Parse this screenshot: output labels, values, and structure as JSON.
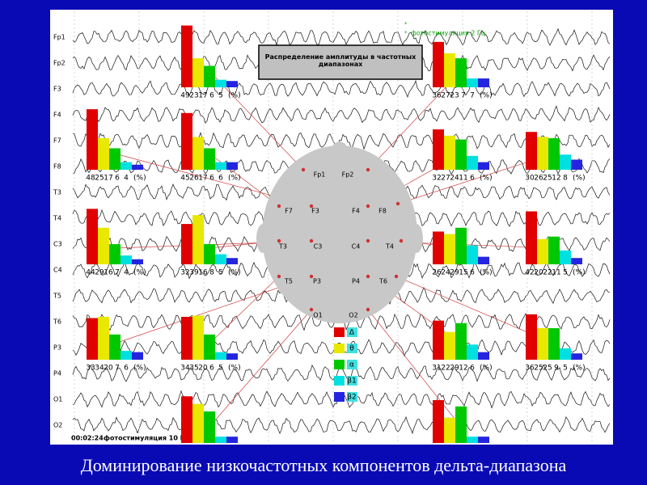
{
  "slide_title": "Доминирование низкочастотных компонентов дельта-диапазона",
  "panel_title": "Распределение амплитуды в частотных диапазонах",
  "stimulus_note": "фотостимуляция 2 Гц",
  "timestamp": "00:02:24",
  "stimulus_note_bottom": "фотостимуляция 10 Гц",
  "channels": [
    "Fp1",
    "Fp2",
    "F3",
    "F4",
    "F7",
    "F8",
    "T3",
    "T4",
    "C3",
    "C4",
    "T5",
    "T6",
    "P3",
    "P4",
    "O1",
    "O2"
  ],
  "electrodes": [
    "Fp1",
    "Fp2",
    "F7",
    "F3",
    "F4",
    "F8",
    "T3",
    "C3",
    "C4",
    "T4",
    "T5",
    "P3",
    "P4",
    "T6",
    "O1",
    "O2"
  ],
  "legend": [
    {
      "label": "Δ",
      "color": "#e00000"
    },
    {
      "label": "θ",
      "color": "#e8e800"
    },
    {
      "label": "α",
      "color": "#00c800"
    },
    {
      "label": "β1",
      "color": "#00e0e0"
    },
    {
      "label": "β2",
      "color": "#2424e0"
    }
  ],
  "unit": "(%)",
  "chart_data": [
    {
      "type": "bar",
      "values": [
        49,
        23,
        17,
        6,
        5
      ],
      "ylim": [
        0,
        50
      ],
      "show_values": true
    },
    {
      "type": "bar",
      "values": [
        36,
        27,
        23,
        7,
        7
      ],
      "ylim": [
        0,
        50
      ],
      "show_values": true
    },
    {
      "type": "bar",
      "values": [
        48,
        25,
        17,
        6,
        4
      ],
      "ylim": [
        0,
        50
      ],
      "show_values": true
    },
    {
      "type": "bar",
      "values": [
        45,
        26,
        17,
        6,
        6
      ],
      "ylim": [
        0,
        50
      ],
      "show_values": true
    },
    {
      "type": "bar",
      "values": [
        32,
        27,
        24,
        11,
        6
      ],
      "ylim": [
        0,
        50
      ],
      "show_values": true
    },
    {
      "type": "bar",
      "values": [
        30,
        26,
        25,
        12,
        8
      ],
      "ylim": [
        0,
        50
      ],
      "show_values": true
    },
    {
      "type": "bar",
      "values": [
        44,
        29,
        16,
        7,
        4
      ],
      "ylim": [
        0,
        50
      ],
      "show_values": true
    },
    {
      "type": "bar",
      "values": [
        32,
        39,
        16,
        8,
        5
      ],
      "ylim": [
        0,
        50
      ],
      "show_values": true
    },
    {
      "type": "bar",
      "values": [
        26,
        24,
        29,
        15,
        6
      ],
      "ylim": [
        0,
        50
      ],
      "show_values": true
    },
    {
      "type": "bar",
      "values": [
        42,
        20,
        22,
        11,
        5
      ],
      "ylim": [
        0,
        50
      ],
      "show_values": true
    },
    {
      "type": "bar",
      "values": [
        33,
        34,
        20,
        7,
        6
      ],
      "ylim": [
        0,
        50
      ],
      "show_values": true
    },
    {
      "type": "bar",
      "values": [
        34,
        35,
        20,
        6,
        5
      ],
      "ylim": [
        0,
        50
      ],
      "show_values": true
    },
    {
      "type": "bar",
      "values": [
        31,
        22,
        29,
        12,
        6
      ],
      "ylim": [
        0,
        50
      ],
      "show_values": true
    },
    {
      "type": "bar",
      "values": [
        36,
        25,
        25,
        9,
        5
      ],
      "ylim": [
        0,
        50
      ],
      "show_values": true
    },
    {
      "type": "bar",
      "values": [
        37,
        31,
        25,
        5,
        5
      ],
      "ylim": [
        0,
        50
      ],
      "show_values": false
    },
    {
      "type": "bar",
      "values": [
        34,
        20,
        29,
        5,
        5
      ],
      "ylim": [
        0,
        50
      ],
      "show_values": false
    }
  ]
}
